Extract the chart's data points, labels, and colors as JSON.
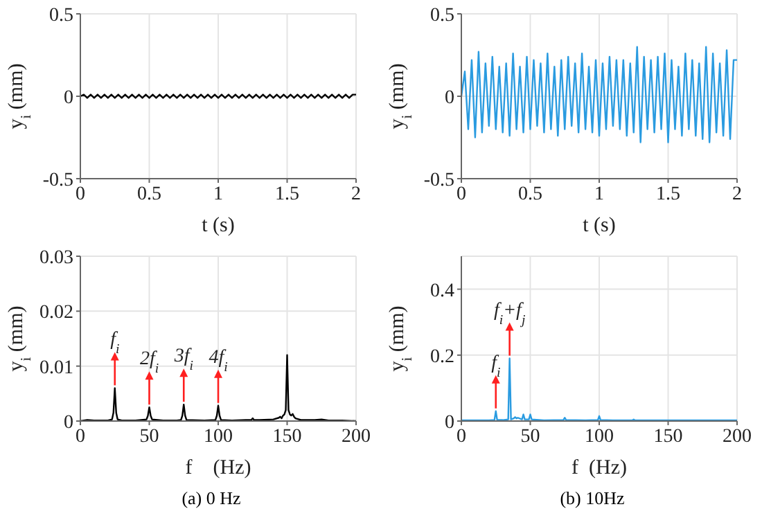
{
  "chart_data": [
    {
      "type": "line",
      "xlabel": "t (s)",
      "ylabel": "y$_{i}$ (mm)",
      "color": "#000000",
      "xlim": [
        0,
        2
      ],
      "xticks": [
        0,
        0.5,
        1,
        1.5,
        2
      ],
      "ylim": [
        -0.5,
        0.5
      ],
      "yticks": [
        -0.5,
        0,
        0.5
      ],
      "grid": true,
      "x": [
        0,
        0.025,
        0.05,
        0.075,
        0.1,
        0.125,
        0.15,
        0.175,
        0.2,
        0.225,
        0.25,
        0.275,
        0.3,
        0.325,
        0.35,
        0.375,
        0.4,
        0.425,
        0.45,
        0.475,
        0.5,
        0.525,
        0.55,
        0.575,
        0.6,
        0.625,
        0.65,
        0.675,
        0.7,
        0.725,
        0.75,
        0.775,
        0.8,
        0.825,
        0.85,
        0.875,
        0.9,
        0.925,
        0.95,
        0.975,
        1,
        1.025,
        1.05,
        1.075,
        1.1,
        1.125,
        1.15,
        1.175,
        1.2,
        1.225,
        1.25,
        1.275,
        1.3,
        1.325,
        1.35,
        1.375,
        1.4,
        1.425,
        1.45,
        1.475,
        1.5,
        1.525,
        1.55,
        1.575,
        1.6,
        1.625,
        1.65,
        1.675,
        1.7,
        1.725,
        1.75,
        1.775,
        1.8,
        1.825,
        1.85,
        1.875,
        1.9,
        1.925,
        1.95,
        1.975,
        2
      ],
      "values": [
        0,
        0.01,
        -0.01,
        0.01,
        -0.01,
        0.01,
        -0.01,
        0.01,
        -0.01,
        0.01,
        -0.01,
        0.01,
        -0.01,
        0.01,
        -0.01,
        0.01,
        -0.01,
        0.01,
        -0.01,
        0.01,
        -0.01,
        0.01,
        -0.01,
        0.01,
        -0.01,
        0.01,
        -0.01,
        0.01,
        -0.01,
        0.01,
        -0.01,
        0.01,
        -0.01,
        0.01,
        -0.01,
        0.01,
        -0.01,
        0.01,
        -0.01,
        0.01,
        -0.01,
        0.01,
        -0.01,
        0.01,
        -0.01,
        0.01,
        -0.01,
        0.01,
        -0.01,
        0.01,
        -0.01,
        0.01,
        -0.01,
        0.01,
        -0.01,
        0.01,
        -0.01,
        0.01,
        -0.01,
        0.01,
        -0.01,
        0.01,
        -0.01,
        0.01,
        -0.01,
        0.01,
        -0.01,
        0.01,
        -0.01,
        0.01,
        -0.01,
        0.01,
        -0.01,
        0.01,
        -0.01,
        0.01,
        -0.01,
        0.01,
        -0.01,
        0.01,
        0.01
      ]
    },
    {
      "type": "line",
      "xlabel": "t (s)",
      "ylabel": "y$_{i}$ (mm)",
      "color": "#2a9be0",
      "xlim": [
        0,
        2
      ],
      "xticks": [
        0,
        0.5,
        1,
        1.5,
        2
      ],
      "ylim": [
        -0.5,
        0.5
      ],
      "yticks": [
        -0.5,
        0,
        0.5
      ],
      "grid": true,
      "x": [
        0,
        0.025,
        0.05,
        0.075,
        0.1,
        0.125,
        0.15,
        0.175,
        0.2,
        0.225,
        0.25,
        0.275,
        0.3,
        0.325,
        0.35,
        0.375,
        0.4,
        0.425,
        0.45,
        0.475,
        0.5,
        0.525,
        0.55,
        0.575,
        0.6,
        0.625,
        0.65,
        0.675,
        0.7,
        0.725,
        0.75,
        0.775,
        0.8,
        0.825,
        0.85,
        0.875,
        0.9,
        0.925,
        0.95,
        0.975,
        1,
        1.025,
        1.05,
        1.075,
        1.1,
        1.125,
        1.15,
        1.175,
        1.2,
        1.225,
        1.25,
        1.275,
        1.3,
        1.325,
        1.35,
        1.375,
        1.4,
        1.425,
        1.45,
        1.475,
        1.5,
        1.525,
        1.55,
        1.575,
        1.6,
        1.625,
        1.65,
        1.675,
        1.7,
        1.725,
        1.75,
        1.775,
        1.8,
        1.825,
        1.85,
        1.875,
        1.9,
        1.925,
        1.95,
        1.975,
        2
      ],
      "values": [
        0,
        0.15,
        -0.2,
        0.22,
        -0.25,
        0.27,
        -0.22,
        0.2,
        -0.18,
        0.24,
        -0.2,
        0.18,
        -0.22,
        0.2,
        -0.24,
        0.26,
        -0.2,
        0.18,
        -0.22,
        0.24,
        -0.2,
        0.22,
        -0.18,
        0.2,
        -0.22,
        0.26,
        -0.2,
        0.18,
        -0.24,
        0.22,
        -0.2,
        0.24,
        -0.18,
        0.2,
        -0.22,
        0.26,
        -0.2,
        0.18,
        -0.22,
        0.22,
        -0.24,
        0.2,
        -0.2,
        0.24,
        -0.18,
        0.22,
        -0.2,
        0.22,
        -0.24,
        0.2,
        -0.22,
        0.3,
        -0.28,
        0.24,
        -0.2,
        0.22,
        -0.22,
        0.24,
        -0.2,
        0.26,
        -0.28,
        0.22,
        -0.2,
        0.18,
        -0.24,
        0.26,
        -0.2,
        0.22,
        -0.24,
        0.2,
        -0.26,
        0.3,
        -0.28,
        0.26,
        -0.22,
        0.2,
        -0.24,
        0.28,
        -0.26,
        0.22,
        0.22
      ]
    },
    {
      "type": "line",
      "xlabel": "f    (Hz)",
      "ylabel": "y$_{i}$ (mm)",
      "color": "#000000",
      "xlim": [
        0,
        200
      ],
      "xticks": [
        0,
        50,
        100,
        150,
        200
      ],
      "ylim": [
        0,
        0.03
      ],
      "yticks": [
        0,
        0.01,
        0.02,
        0.03
      ],
      "grid": true,
      "x": [
        0,
        5,
        10,
        15,
        20,
        23,
        24,
        25,
        26,
        27,
        30,
        40,
        48,
        49,
        50,
        51,
        52,
        60,
        70,
        73,
        74,
        75,
        76,
        77,
        90,
        98,
        99,
        100,
        101,
        102,
        110,
        120,
        124,
        125,
        126,
        130,
        140,
        144,
        145,
        146,
        147,
        148,
        149,
        150,
        151,
        152,
        153,
        154,
        155,
        156,
        160,
        170,
        175,
        180,
        190,
        200
      ],
      "values": [
        0,
        0.0002,
        0.0001,
        0.0001,
        0.0001,
        0.0003,
        0.0015,
        0.006,
        0.0015,
        0.0003,
        0.0001,
        0.0001,
        0.0003,
        0.001,
        0.0025,
        0.001,
        0.0003,
        0.0001,
        0.0001,
        0.0002,
        0.001,
        0.003,
        0.001,
        0.0002,
        0.0001,
        0.0002,
        0.001,
        0.0028,
        0.001,
        0.0002,
        0.0001,
        0.0002,
        0.0002,
        0.0005,
        0.0002,
        0.0002,
        0.0003,
        0.0006,
        0.0008,
        0.0005,
        0.001,
        0.0012,
        0.002,
        0.012,
        0.002,
        0.0012,
        0.001,
        0.0013,
        0.0008,
        0.0005,
        0.0002,
        0.0002,
        0.0003,
        0.0001,
        0.0001,
        0
      ],
      "annotations": [
        {
          "text": "f$_{i}$",
          "x": 25,
          "y": 0.006
        },
        {
          "text": "2f$_{i}$",
          "x": 50,
          "y": 0.0025
        },
        {
          "text": "3f$_{i}$",
          "x": 75,
          "y": 0.003
        },
        {
          "text": "4f$_{i}$",
          "x": 100,
          "y": 0.0028
        },
        "(a) 0 Hz"
      ]
    },
    {
      "type": "line",
      "xlabel": "f  (Hz)",
      "ylabel": "y$_{i}$ (mm)",
      "color": "#2a9be0",
      "xlim": [
        0,
        200
      ],
      "xticks": [
        0,
        50,
        100,
        150,
        200
      ],
      "ylim": [
        0,
        0.5
      ],
      "yticks": [
        0,
        0.2,
        0.4
      ],
      "grid": true,
      "x": [
        0,
        10,
        20,
        24,
        25,
        26,
        30,
        34,
        35,
        36,
        38,
        39,
        40,
        41,
        44,
        45,
        46,
        49,
        50,
        51,
        60,
        74,
        75,
        76,
        90,
        99,
        100,
        101,
        110,
        124,
        125,
        126,
        150,
        175,
        200
      ],
      "values": [
        0.002,
        0.002,
        0.002,
        0.003,
        0.03,
        0.003,
        0.003,
        0.005,
        0.19,
        0.005,
        0.008,
        0.012,
        0.008,
        0.01,
        0.005,
        0.02,
        0.005,
        0.005,
        0.02,
        0.005,
        0.002,
        0.003,
        0.01,
        0.003,
        0.002,
        0.003,
        0.015,
        0.003,
        0.002,
        0.002,
        0.005,
        0.002,
        0.002,
        0.002,
        0.002
      ],
      "annotations": [
        {
          "text": "f$_{i}$",
          "x": 25,
          "y": 0.03
        },
        {
          "text": "f$_{i}$+f$_{j}$",
          "x": 35,
          "y": 0.19
        },
        "(b) 10Hz"
      ]
    }
  ]
}
